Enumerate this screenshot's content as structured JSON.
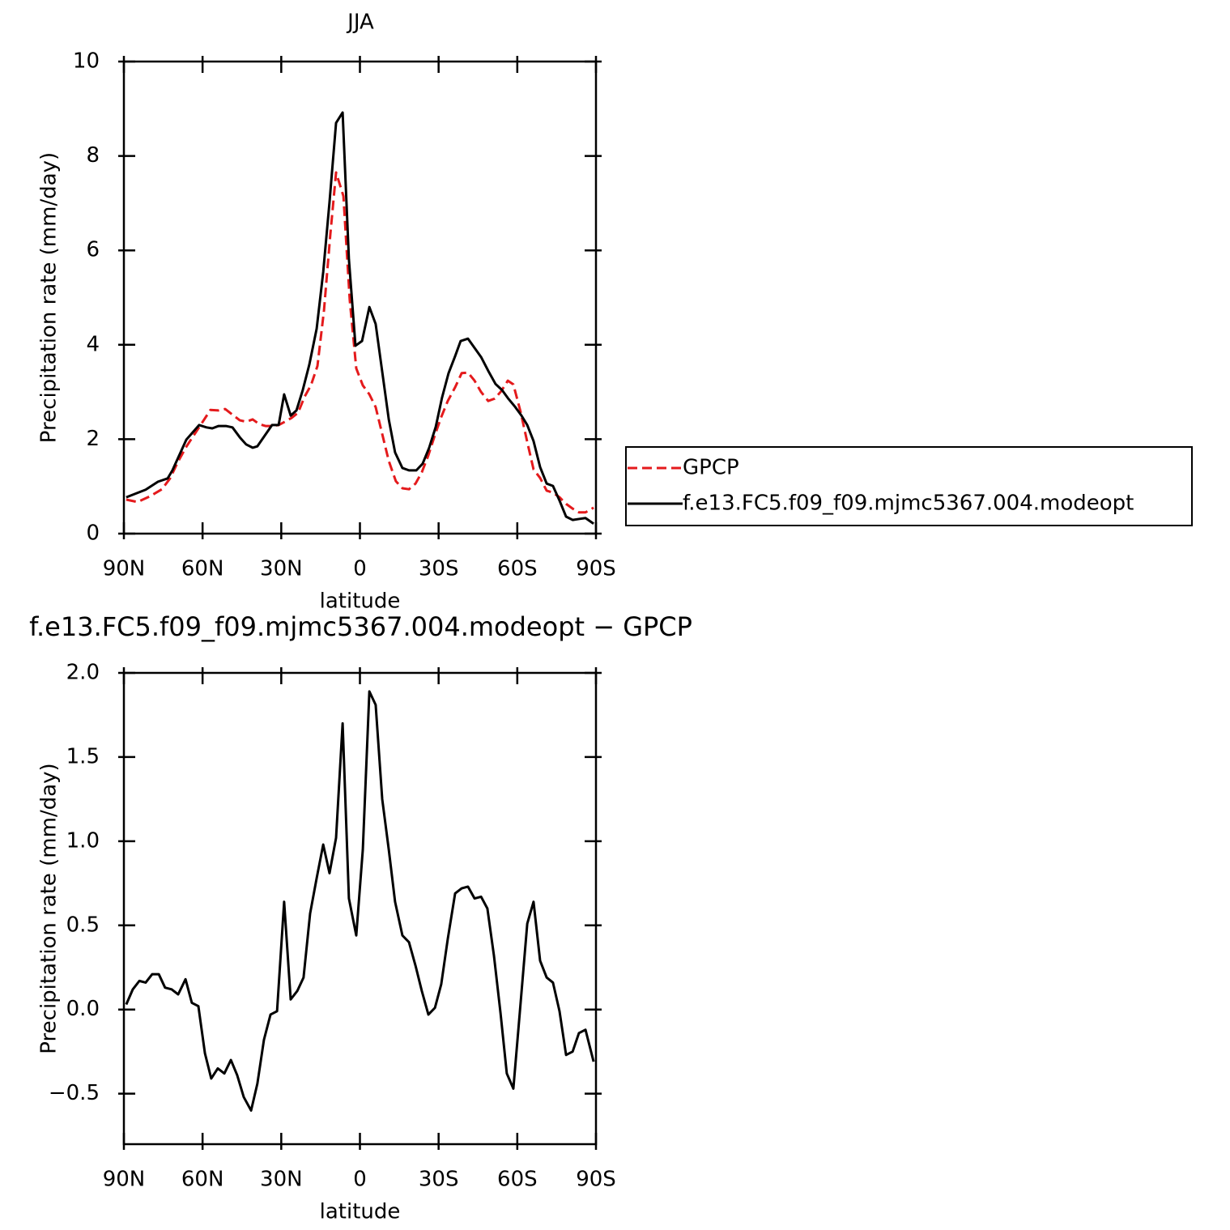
{
  "chart_data": [
    {
      "type": "line",
      "title": "JJA",
      "xlabel": "latitude",
      "ylabel": "Precipitation rate (mm/day)",
      "xlim": [
        90,
        -90
      ],
      "xticks": [
        {
          "value": 90,
          "label": "90N"
        },
        {
          "value": 60,
          "label": "60N"
        },
        {
          "value": 30,
          "label": "30N"
        },
        0,
        {
          "value": -30,
          "label": "30S"
        },
        {
          "value": -60,
          "label": "60S"
        },
        {
          "value": -90,
          "label": "90S"
        }
      ],
      "ylim": [
        0,
        10
      ],
      "yticks": [
        0,
        2,
        4,
        6,
        8,
        10
      ],
      "legend": "right",
      "series": [
        {
          "name": "GPCP",
          "color": "#e41a1c",
          "line_style": "dashed",
          "x": [
            89.1,
            84.8,
            80.1,
            75.5,
            72.4,
            69.3,
            66.2,
            61.6,
            57.0,
            53.9,
            51.4,
            48.6,
            45.8,
            43.4,
            40.9,
            38.4,
            36.0,
            33.5,
            31.0,
            28.6,
            26.1,
            23.6,
            21.1,
            18.7,
            16.2,
            13.7,
            11.3,
            9.1,
            6.3,
            3.9,
            1.4,
            -1.1,
            -3.6,
            -6.0,
            -8.5,
            -11.0,
            -13.7,
            -16.2,
            -18.7,
            -21.2,
            -23.6,
            -26.1,
            -28.6,
            -31.0,
            -33.5,
            -36.3,
            -38.8,
            -41.2,
            -43.7,
            -46.2,
            -48.9,
            -51.4,
            -53.9,
            -56.4,
            -58.5,
            -61.3,
            -63.8,
            -66.2,
            -68.7,
            -71.2,
            -73.6,
            -76.1,
            -78.6,
            -81.1,
            -83.5,
            -86.0,
            -89.1
          ],
          "values": [
            0.72,
            0.67,
            0.79,
            0.94,
            1.17,
            1.53,
            1.84,
            2.23,
            2.62,
            2.61,
            2.64,
            2.52,
            2.4,
            2.37,
            2.42,
            2.32,
            2.28,
            2.28,
            2.3,
            2.37,
            2.45,
            2.56,
            2.9,
            3.14,
            3.55,
            4.73,
            6.33,
            7.65,
            7.15,
            4.96,
            3.5,
            3.14,
            2.95,
            2.68,
            2.11,
            1.54,
            1.11,
            0.96,
            0.94,
            1.06,
            1.3,
            1.66,
            2.09,
            2.47,
            2.81,
            3.1,
            3.4,
            3.41,
            3.24,
            3.0,
            2.81,
            2.86,
            3.02,
            3.24,
            3.16,
            2.57,
            1.94,
            1.36,
            1.18,
            0.91,
            0.87,
            0.77,
            0.63,
            0.53,
            0.45,
            0.45,
            0.55
          ]
        },
        {
          "name": "f.e13.FC5.f09_f09.mjmc5367.004.modeopt",
          "color": "#000000",
          "line_style": "solid",
          "x": [
            89.1,
            81.7,
            77.0,
            73.3,
            71.5,
            66.2,
            61.3,
            58.5,
            56.3,
            53.9,
            51.1,
            48.6,
            45.8,
            43.4,
            40.9,
            39.1,
            33.5,
            31.0,
            28.9,
            26.4,
            24.2,
            21.8,
            19.3,
            16.5,
            14.0,
            11.6,
            9.1,
            6.6,
            4.2,
            1.7,
            -0.8,
            -3.6,
            -6.0,
            -8.5,
            -11.0,
            -13.4,
            -16.2,
            -18.7,
            -21.5,
            -23.9,
            -26.4,
            -28.9,
            -31.3,
            -33.8,
            -36.3,
            -38.4,
            -41.2,
            -46.2,
            -48.9,
            -51.7,
            -54.2,
            -56.7,
            -59.1,
            -61.6,
            -63.8,
            -66.2,
            -68.7,
            -71.2,
            -73.6,
            -76.1,
            -78.6,
            -81.1,
            -83.5,
            -86.0,
            -89.1
          ],
          "values": [
            0.77,
            0.93,
            1.1,
            1.17,
            1.34,
            1.99,
            2.3,
            2.25,
            2.23,
            2.28,
            2.28,
            2.25,
            2.04,
            1.89,
            1.82,
            1.85,
            2.3,
            2.3,
            2.95,
            2.5,
            2.61,
            3.04,
            3.58,
            4.34,
            5.54,
            7.02,
            8.7,
            8.92,
            5.81,
            3.98,
            4.08,
            4.8,
            4.44,
            3.43,
            2.42,
            1.72,
            1.39,
            1.34,
            1.34,
            1.48,
            1.82,
            2.26,
            2.88,
            3.4,
            3.76,
            4.08,
            4.13,
            3.74,
            3.45,
            3.17,
            3.04,
            2.85,
            2.69,
            2.5,
            2.3,
            1.96,
            1.41,
            1.06,
            1.01,
            0.7,
            0.36,
            0.29,
            0.31,
            0.33,
            0.21
          ]
        }
      ]
    },
    {
      "type": "line",
      "title": "f.e13.FC5.f09_f09.mjmc5367.004.modeopt − GPCP",
      "xlabel": "latitude",
      "ylabel": "Precipitation rate (mm/day)",
      "xlim": [
        90,
        -90
      ],
      "xticks": [
        {
          "value": 90,
          "label": "90N"
        },
        {
          "value": 60,
          "label": "60N"
        },
        {
          "value": 30,
          "label": "30N"
        },
        0,
        {
          "value": -30,
          "label": "30S"
        },
        {
          "value": -60,
          "label": "60S"
        },
        {
          "value": -90,
          "label": "90S"
        }
      ],
      "ylim": [
        -0.8,
        2.0
      ],
      "yticks": [
        {
          "value": -0.5,
          "label": "−0.5"
        },
        {
          "value": 0,
          "label": "0.0"
        },
        0.5,
        {
          "value": 1,
          "label": "1.0"
        },
        1.5,
        {
          "value": 2,
          "label": "2.0"
        }
      ],
      "series": [
        {
          "color": "#000000",
          "line_style": "solid",
          "x": [
            89.1,
            86.6,
            84.1,
            81.7,
            79.2,
            76.7,
            74.3,
            71.8,
            69.3,
            66.5,
            64.1,
            61.6,
            59.1,
            56.7,
            54.2,
            51.7,
            49.2,
            46.8,
            44.3,
            41.5,
            39.1,
            36.6,
            34.1,
            31.6,
            28.9,
            26.4,
            23.9,
            21.5,
            19.0,
            16.5,
            14.0,
            11.6,
            9.1,
            6.6,
            4.2,
            1.4,
            -1.1,
            -3.6,
            -6.0,
            -8.5,
            -11.0,
            -13.4,
            -16.2,
            -18.7,
            -21.2,
            -23.6,
            -26.1,
            -28.6,
            -31.0,
            -33.5,
            -36.3,
            -38.8,
            -41.2,
            -43.7,
            -46.2,
            -48.6,
            -51.1,
            -53.6,
            -56.0,
            -58.5,
            -61.0,
            -63.8,
            -66.2,
            -68.7,
            -71.2,
            -73.6,
            -76.1,
            -78.6,
            -81.1,
            -83.5,
            -86.0,
            -89.1
          ],
          "values": [
            0.03,
            0.12,
            0.17,
            0.16,
            0.21,
            0.21,
            0.13,
            0.12,
            0.09,
            0.18,
            0.04,
            0.02,
            -0.26,
            -0.41,
            -0.35,
            -0.38,
            -0.3,
            -0.39,
            -0.52,
            -0.6,
            -0.44,
            -0.18,
            -0.03,
            -0.01,
            0.64,
            0.06,
            0.11,
            0.19,
            0.57,
            0.78,
            0.98,
            0.81,
            1.02,
            1.7,
            0.66,
            0.44,
            0.95,
            1.89,
            1.81,
            1.25,
            0.95,
            0.64,
            0.44,
            0.4,
            0.26,
            0.11,
            -0.03,
            0.01,
            0.15,
            0.42,
            0.69,
            0.72,
            0.73,
            0.66,
            0.67,
            0.6,
            0.32,
            -0.02,
            -0.38,
            -0.47,
            -0.01,
            0.51,
            0.64,
            0.29,
            0.19,
            0.16,
            -0.01,
            -0.27,
            -0.25,
            -0.14,
            -0.12,
            -0.31
          ]
        }
      ]
    }
  ]
}
